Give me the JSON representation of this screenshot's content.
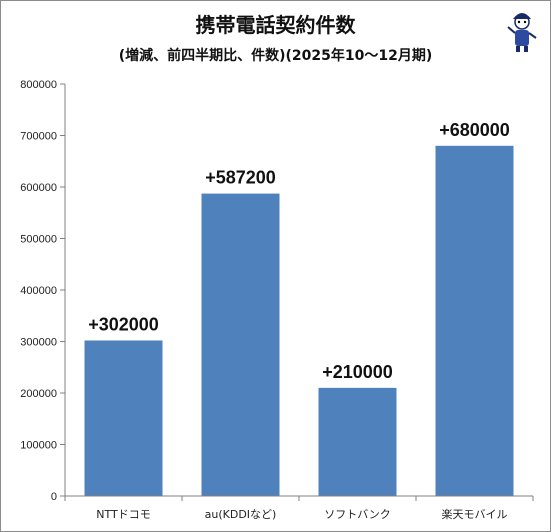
{
  "chart_data": {
    "type": "bar",
    "title": "携帯電話契約件数",
    "subtitle": "(増減、前四半期比、件数)(2025年10～12月期)",
    "categories": [
      "NTTドコモ",
      "au(KDDIなど)",
      "ソフトバンク",
      "楽天モバイル"
    ],
    "values": [
      302000,
      587200,
      210000,
      680000
    ],
    "data_labels": [
      "+302000",
      "+587200",
      "+210000",
      "+680000"
    ],
    "ylim": [
      0,
      800000
    ],
    "yticks": [
      "0",
      "100000",
      "200000",
      "300000",
      "400000",
      "500000",
      "600000",
      "700000",
      "800000"
    ],
    "xlabel": "",
    "ylabel": "",
    "grid": false,
    "bar_color": "#4f81bd"
  }
}
